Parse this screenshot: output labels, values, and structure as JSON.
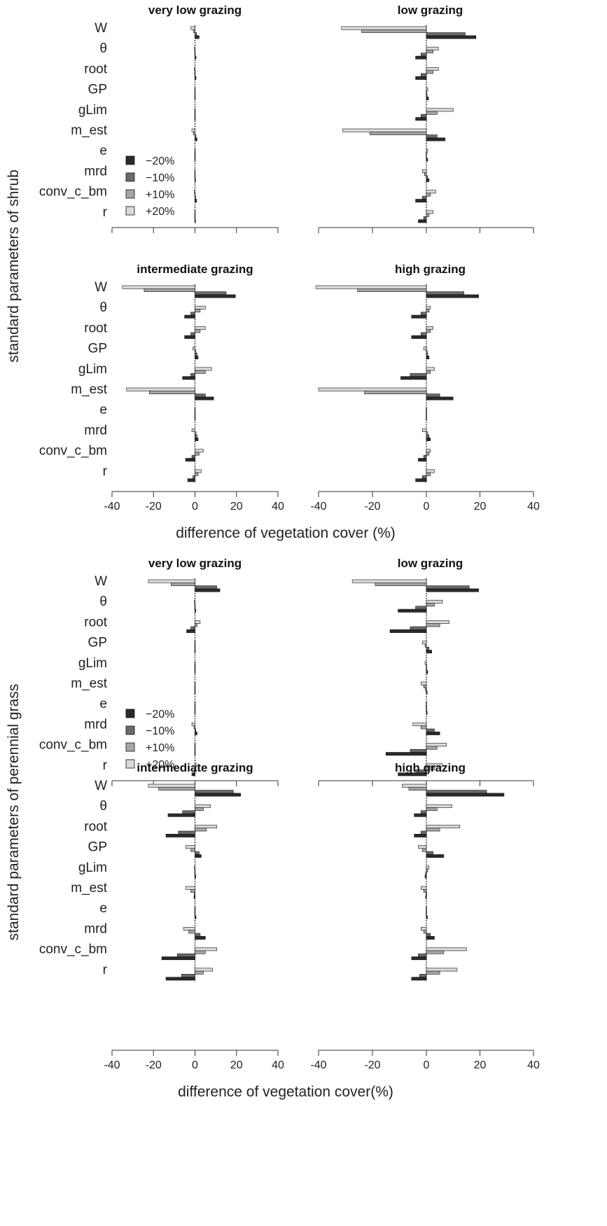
{
  "chart_data": {
    "type": "bar",
    "orientation": "horizontal",
    "xlim": [
      -40,
      40
    ],
    "xticks": [
      -40,
      -20,
      0,
      20,
      40
    ],
    "legend": {
      "placement": "bottom-left of first panel",
      "entries": [
        "−20%",
        "−10%",
        "+10%",
        "+20%"
      ],
      "colors": [
        "#2a2a2a",
        "#6a6a6a",
        "#a6a6a6",
        "#d9d9d9"
      ]
    },
    "categories": [
      "W",
      "θ",
      "root",
      "GP",
      "gLim",
      "m_est",
      "e",
      "mrd",
      "conv_c_bm",
      "r"
    ],
    "groups": [
      {
        "ylabel": "standard parameters of shrub",
        "xlabel": "difference of vegetation cover (%)",
        "panels": [
          {
            "title": "very low grazing",
            "series": [
              {
                "name": "+20%",
                "values": [
                  -2,
                  -0.3,
                  -0.3,
                  0,
                  0,
                  -1.5,
                  0,
                  0,
                  -0.3,
                  0
                ]
              },
              {
                "name": "+10%",
                "values": [
                  -0.8,
                  -0.2,
                  -0.2,
                  0,
                  0,
                  -0.7,
                  0,
                  0,
                  -0.2,
                  0
                ]
              },
              {
                "name": "−10%",
                "values": [
                  0.8,
                  0.2,
                  0.2,
                  0,
                  0,
                  0.5,
                  0,
                  0,
                  0.3,
                  0
                ]
              },
              {
                "name": "−20%",
                "values": [
                  2,
                  0.5,
                  0.5,
                  0.2,
                  0.2,
                  1,
                  0.2,
                  0.3,
                  0.8,
                  0.3
                ]
              }
            ]
          },
          {
            "title": "low grazing",
            "series": [
              {
                "name": "+20%",
                "values": [
                  -31.5,
                  4.5,
                  4.5,
                  0.5,
                  10,
                  -31,
                  0.5,
                  -1.5,
                  3.5,
                  2.5
                ]
              },
              {
                "name": "+10%",
                "values": [
                  -24,
                  2.5,
                  2.5,
                  0.2,
                  4,
                  -21,
                  0.2,
                  -0.7,
                  1.5,
                  1
                ]
              },
              {
                "name": "−10%",
                "values": [
                  14.5,
                  -2,
                  -2,
                  0.3,
                  -2,
                  4,
                  -0.2,
                  0.5,
                  -1.5,
                  -1
                ]
              },
              {
                "name": "−20%",
                "values": [
                  18.5,
                  -4,
                  -4,
                  0.8,
                  -4,
                  7,
                  0.5,
                  1,
                  -4,
                  -3
                ]
              }
            ]
          },
          {
            "title": "intermediate grazing",
            "series": [
              {
                "name": "+20%",
                "values": [
                  -35,
                  5,
                  5,
                  -1,
                  8,
                  -33,
                  -0.2,
                  -1.5,
                  4,
                  3
                ]
              },
              {
                "name": "+10%",
                "values": [
                  -24.5,
                  2.5,
                  2.5,
                  0.5,
                  5,
                  -22,
                  -0.1,
                  0.5,
                  2,
                  1.5
                ]
              },
              {
                "name": "−10%",
                "values": [
                  15,
                  -2,
                  -2,
                  1,
                  -2,
                  5,
                  0.1,
                  1,
                  -1.5,
                  -1
                ]
              },
              {
                "name": "−20%",
                "values": [
                  19.5,
                  -5,
                  -5,
                  1.5,
                  -6,
                  9,
                  0.2,
                  1.5,
                  -4.5,
                  -3.5
                ]
              }
            ]
          },
          {
            "title": "high grazing",
            "series": [
              {
                "name": "+20%",
                "values": [
                  -41,
                  1.5,
                  2.5,
                  -1,
                  3,
                  -40,
                  -0.1,
                  -1.5,
                  1.5,
                  3
                ]
              },
              {
                "name": "+10%",
                "values": [
                  -25.5,
                  1,
                  1.5,
                  0.3,
                  1.5,
                  -23,
                  -0.1,
                  0.5,
                  1,
                  1.5
                ]
              },
              {
                "name": "−10%",
                "values": [
                  14,
                  -2,
                  -2,
                  0.5,
                  -6,
                  5,
                  0.1,
                  1,
                  -1,
                  -1.5
                ]
              },
              {
                "name": "−20%",
                "values": [
                  19.5,
                  -5.5,
                  -5.5,
                  1,
                  -9.5,
                  10,
                  0.1,
                  1.5,
                  -3,
                  -4
                ]
              }
            ]
          }
        ]
      },
      {
        "ylabel": "standard parameters of perennial grass",
        "xlabel": "difference of vegetation cover(%)",
        "panels": [
          {
            "title": "very low grazing",
            "series": [
              {
                "name": "+20%",
                "values": [
                  -22.5,
                  -0.3,
                  2.5,
                  0,
                  0,
                  0,
                  0,
                  -1.5,
                  0,
                  0.8
                ]
              },
              {
                "name": "+10%",
                "values": [
                  -11.5,
                  -0.2,
                  1,
                  0,
                  0,
                  0,
                  0,
                  -0.5,
                  0,
                  0.3
                ]
              },
              {
                "name": "−10%",
                "values": [
                  10.5,
                  0.2,
                  -2,
                  0,
                  0,
                  0,
                  0,
                  0.4,
                  0,
                  -0.5
                ]
              },
              {
                "name": "−20%",
                "values": [
                  12,
                  0.4,
                  -4,
                  0,
                  0,
                  0,
                  0,
                  1,
                  0,
                  -1.5
                ]
              }
            ]
          },
          {
            "title": "low grazing",
            "series": [
              {
                "name": "+20%",
                "values": [
                  -27.5,
                  6,
                  8.5,
                  -1.5,
                  -0.5,
                  -2,
                  -0.2,
                  -5,
                  7.5,
                  6
                ]
              },
              {
                "name": "+10%",
                "values": [
                  -19,
                  3,
                  5,
                  -0.5,
                  -0.2,
                  -1,
                  -0.1,
                  -2,
                  4,
                  3
                ]
              },
              {
                "name": "−10%",
                "values": [
                  16,
                  -4,
                  -6,
                  1,
                  0.2,
                  -0.3,
                  0.1,
                  3,
                  -6,
                  -4
                ]
              },
              {
                "name": "−20%",
                "values": [
                  19.5,
                  -10.5,
                  -13.5,
                  2,
                  0.5,
                  0.3,
                  0.3,
                  5,
                  -15,
                  -10.5
                ]
              }
            ]
          },
          {
            "title": "intermediate grazing",
            "series": [
              {
                "name": "+20%",
                "values": [
                  -22.5,
                  7.5,
                  10.5,
                  -4.5,
                  -0.3,
                  -4.5,
                  -0.2,
                  -5.5,
                  10.5,
                  8.5
                ]
              },
              {
                "name": "+10%",
                "values": [
                  -17.5,
                  4,
                  5.5,
                  -2,
                  -0.2,
                  -2,
                  -0.1,
                  -3,
                  5,
                  4
                ]
              },
              {
                "name": "−10%",
                "values": [
                  18.5,
                  -6,
                  -8,
                  2,
                  0.2,
                  -0.3,
                  0.1,
                  2.5,
                  -8.5,
                  -6.5
                ]
              },
              {
                "name": "−20%",
                "values": [
                  22,
                  -13,
                  -14,
                  3,
                  0.4,
                  -0.5,
                  0.5,
                  5,
                  -16,
                  -14
                ]
              }
            ]
          },
          {
            "title": "high grazing",
            "series": [
              {
                "name": "+20%",
                "values": [
                  -9,
                  9.5,
                  12.5,
                  -3,
                  1,
                  -2,
                  -0.2,
                  -2,
                  15,
                  11.5
                ]
              },
              {
                "name": "+10%",
                "values": [
                  -6.5,
                  4,
                  5,
                  -1.5,
                  0.5,
                  -1,
                  -0.1,
                  -1,
                  6.5,
                  5
                ]
              },
              {
                "name": "−10%",
                "values": [
                  22.5,
                  -2,
                  -2,
                  2.5,
                  -0.3,
                  -0.2,
                  0.1,
                  1.5,
                  -3,
                  -2.5
                ]
              },
              {
                "name": "−20%",
                "values": [
                  29,
                  -4.5,
                  -4.5,
                  6.5,
                  -0.5,
                  -0.3,
                  0.4,
                  3,
                  -5.5,
                  -5.5
                ]
              }
            ]
          }
        ]
      }
    ]
  }
}
